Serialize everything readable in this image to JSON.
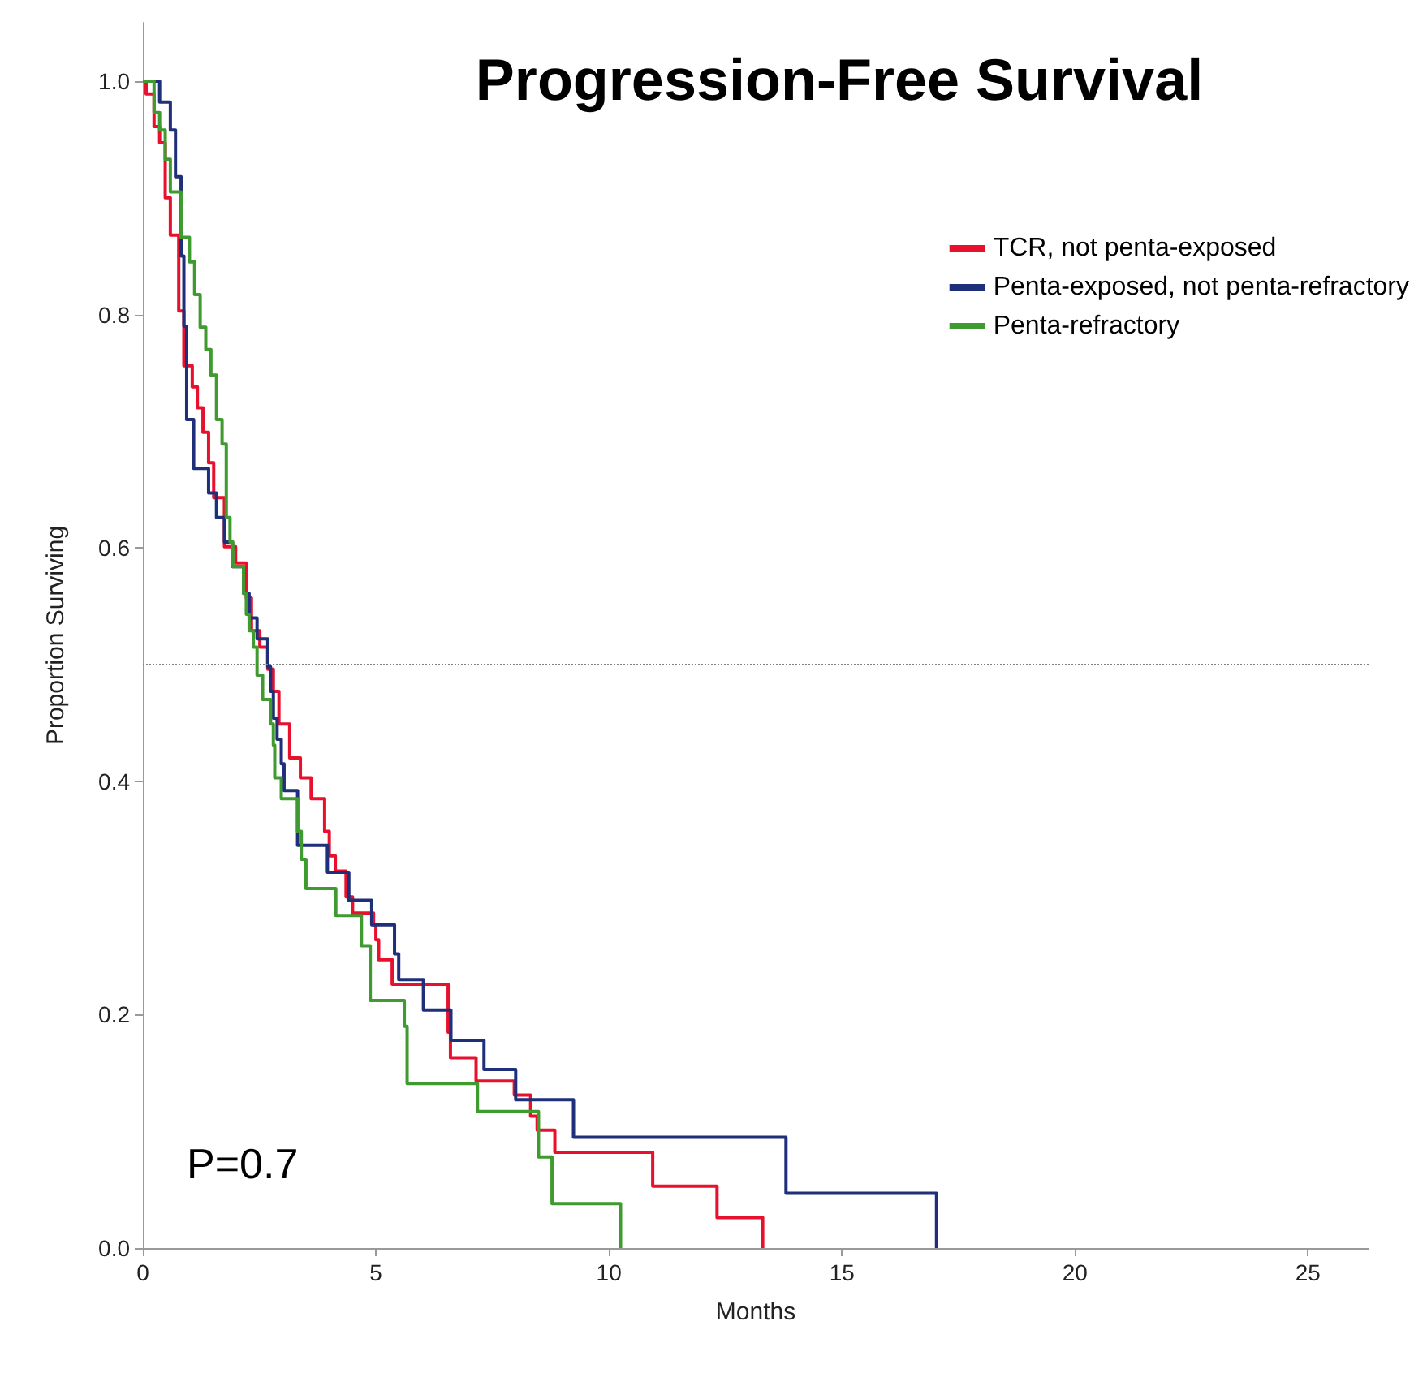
{
  "chart_data": {
    "type": "step",
    "title": "Progression-Free Survival",
    "xlabel": "Months",
    "ylabel": "Proportion Surviving",
    "xlim": [
      0,
      26.3
    ],
    "ylim": [
      0,
      1.05
    ],
    "xticks": [
      0,
      5,
      10,
      15,
      20,
      25
    ],
    "yticks": [
      {
        "value": 0,
        "label": "0.0"
      },
      {
        "value": 0.2,
        "label": "0.2"
      },
      {
        "value": 0.4,
        "label": "0.4"
      },
      {
        "value": 0.6,
        "label": "0.6"
      },
      {
        "value": 0.8,
        "label": "0.8"
      },
      {
        "value": 1,
        "label": "1.0"
      }
    ],
    "grid": false,
    "legend": "top right",
    "marker": "none",
    "line_style": "solid",
    "ref_lines": [
      {
        "axis": "y",
        "value": 0.5,
        "color": "#808080",
        "line_style": "dotted"
      }
    ],
    "annotations": [
      "P=0.7"
    ],
    "series": [
      {
        "name": "TCR, not penta-exposed",
        "color": "#e8112d",
        "x": [
          0,
          0.07,
          0.24,
          0.36,
          0.48,
          0.59,
          0.77,
          0.88,
          1.06,
          1.17,
          1.29,
          1.41,
          1.52,
          1.75,
          1.99,
          2.22,
          2.33,
          2.51,
          2.68,
          2.8,
          2.92,
          3.15,
          3.38,
          3.61,
          3.9,
          4.0,
          4.13,
          4.36,
          4.5,
          4.95,
          5.0,
          5.06,
          5.35,
          6.55,
          6.6,
          7.15,
          7.97,
          8.32,
          8.46,
          8.84,
          10.94,
          12.32,
          13.3
        ],
        "values": [
          1.0,
          0.989,
          0.961,
          0.947,
          0.9,
          0.868,
          0.803,
          0.756,
          0.738,
          0.72,
          0.699,
          0.673,
          0.643,
          0.601,
          0.587,
          0.557,
          0.529,
          0.515,
          0.496,
          0.477,
          0.449,
          0.42,
          0.403,
          0.385,
          0.357,
          0.336,
          0.323,
          0.301,
          0.287,
          0.277,
          0.264,
          0.247,
          0.226,
          0.185,
          0.163,
          0.143,
          0.131,
          0.113,
          0.101,
          0.082,
          0.053,
          0.026,
          0
        ]
      },
      {
        "name": "Penta-exposed, not penta-refractory",
        "color": "#1f2f7a",
        "x": [
          0,
          0.36,
          0.59,
          0.7,
          0.82,
          0.88,
          0.94,
          1.09,
          1.41,
          1.58,
          1.75,
          1.92,
          2.16,
          2.28,
          2.45,
          2.68,
          2.74,
          2.8,
          2.88,
          2.97,
          3.03,
          3.32,
          3.96,
          4.42,
          4.91,
          5.4,
          5.49,
          6.02,
          6.61,
          7.32,
          8.0,
          9.24,
          13.8,
          17.03
        ],
        "values": [
          1.0,
          0.982,
          0.958,
          0.918,
          0.85,
          0.79,
          0.71,
          0.668,
          0.647,
          0.626,
          0.605,
          0.584,
          0.561,
          0.54,
          0.522,
          0.498,
          0.477,
          0.454,
          0.436,
          0.415,
          0.392,
          0.345,
          0.322,
          0.298,
          0.277,
          0.252,
          0.23,
          0.204,
          0.178,
          0.153,
          0.127,
          0.095,
          0.047,
          0
        ]
      },
      {
        "name": "Penta-refractory",
        "color": "#3f9a2f",
        "x": [
          0,
          0.24,
          0.36,
          0.48,
          0.59,
          0.82,
          1.0,
          1.11,
          1.23,
          1.35,
          1.46,
          1.58,
          1.7,
          1.79,
          1.87,
          1.93,
          2.16,
          2.22,
          2.28,
          2.37,
          2.45,
          2.57,
          2.74,
          2.8,
          2.83,
          2.97,
          3.32,
          3.4,
          3.5,
          4.14,
          4.69,
          4.88,
          5.61,
          5.67,
          7.18,
          8.49,
          8.78,
          10.25
        ],
        "values": [
          1.0,
          0.973,
          0.958,
          0.933,
          0.905,
          0.866,
          0.845,
          0.817,
          0.789,
          0.77,
          0.748,
          0.71,
          0.689,
          0.626,
          0.605,
          0.584,
          0.561,
          0.543,
          0.529,
          0.515,
          0.491,
          0.47,
          0.449,
          0.431,
          0.403,
          0.385,
          0.357,
          0.333,
          0.308,
          0.285,
          0.259,
          0.212,
          0.19,
          0.141,
          0.117,
          0.078,
          0.038,
          0
        ]
      }
    ]
  }
}
